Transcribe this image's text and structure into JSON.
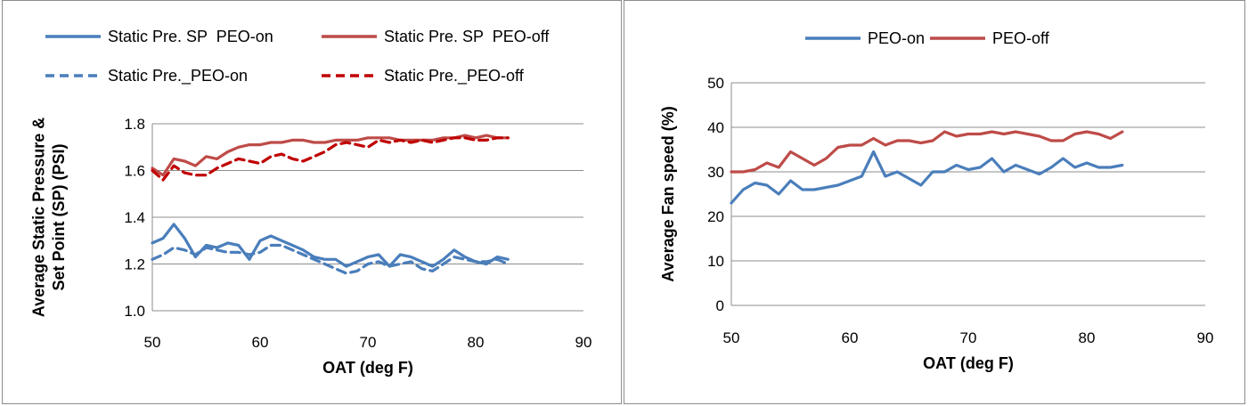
{
  "chart_data": [
    {
      "type": "line",
      "xlabel": "OAT (deg F)",
      "ylabel": "Average Static Pressure & Set Point (SP) (PSI)",
      "xlim": [
        50,
        90
      ],
      "ylim": [
        1.0,
        1.8
      ],
      "xticks": [
        "50",
        "60",
        "70",
        "80",
        "90"
      ],
      "yticks": [
        "1.0",
        "1.2",
        "1.4",
        "1.6",
        "1.8"
      ],
      "grid": "horizontal",
      "legend_position": "top",
      "series": [
        {
          "name": "Static Pre. SP  PEO-on",
          "color": "#4a7ebb",
          "style": "solid",
          "x": [
            50,
            51,
            52,
            53,
            54,
            55,
            56,
            57,
            58,
            59,
            60,
            61,
            62,
            63,
            64,
            65,
            66,
            67,
            68,
            69,
            70,
            71,
            72,
            73,
            74,
            75,
            76,
            77,
            78,
            79,
            80,
            81,
            82,
            83
          ],
          "y": [
            1.29,
            1.31,
            1.37,
            1.31,
            1.23,
            1.28,
            1.27,
            1.29,
            1.28,
            1.22,
            1.3,
            1.32,
            1.3,
            1.28,
            1.26,
            1.23,
            1.22,
            1.22,
            1.19,
            1.21,
            1.23,
            1.24,
            1.19,
            1.24,
            1.23,
            1.21,
            1.19,
            1.22,
            1.26,
            1.23,
            1.21,
            1.2,
            1.23,
            1.22
          ]
        },
        {
          "name": "Static Pre. SP  PEO-off",
          "color": "#be4b48",
          "style": "solid",
          "x": [
            50,
            51,
            52,
            53,
            54,
            55,
            56,
            57,
            58,
            59,
            60,
            61,
            62,
            63,
            64,
            65,
            66,
            67,
            68,
            69,
            70,
            71,
            72,
            73,
            74,
            75,
            76,
            77,
            78,
            79,
            80,
            81,
            82,
            83
          ],
          "y": [
            1.61,
            1.58,
            1.65,
            1.64,
            1.62,
            1.66,
            1.65,
            1.68,
            1.7,
            1.71,
            1.71,
            1.72,
            1.72,
            1.73,
            1.73,
            1.72,
            1.72,
            1.73,
            1.73,
            1.73,
            1.74,
            1.74,
            1.74,
            1.73,
            1.73,
            1.73,
            1.73,
            1.74,
            1.74,
            1.75,
            1.74,
            1.75,
            1.74,
            1.74
          ]
        },
        {
          "name": "Static Pre._PEO-on",
          "color": "#4a7ebb",
          "style": "dashed",
          "x": [
            50,
            51,
            52,
            53,
            54,
            55,
            56,
            57,
            58,
            59,
            60,
            61,
            62,
            63,
            64,
            65,
            66,
            67,
            68,
            69,
            70,
            71,
            72,
            73,
            74,
            75,
            76,
            77,
            78,
            79,
            80,
            81,
            82,
            83
          ],
          "y": [
            1.22,
            1.24,
            1.27,
            1.26,
            1.24,
            1.27,
            1.26,
            1.25,
            1.25,
            1.24,
            1.25,
            1.28,
            1.28,
            1.26,
            1.24,
            1.22,
            1.2,
            1.18,
            1.16,
            1.17,
            1.2,
            1.21,
            1.19,
            1.2,
            1.21,
            1.18,
            1.17,
            1.2,
            1.23,
            1.22,
            1.21,
            1.21,
            1.22,
            1.2
          ]
        },
        {
          "name": "Static Pre._PEO-off",
          "color": "#c00000",
          "style": "dashed",
          "x": [
            50,
            51,
            52,
            53,
            54,
            55,
            56,
            57,
            58,
            59,
            60,
            61,
            62,
            63,
            64,
            65,
            66,
            67,
            68,
            69,
            70,
            71,
            72,
            73,
            74,
            75,
            76,
            77,
            78,
            79,
            80,
            81,
            82,
            83
          ],
          "y": [
            1.6,
            1.56,
            1.62,
            1.59,
            1.58,
            1.58,
            1.61,
            1.63,
            1.65,
            1.64,
            1.63,
            1.66,
            1.67,
            1.65,
            1.64,
            1.66,
            1.68,
            1.71,
            1.72,
            1.71,
            1.7,
            1.73,
            1.72,
            1.73,
            1.72,
            1.73,
            1.72,
            1.73,
            1.74,
            1.74,
            1.73,
            1.73,
            1.74,
            1.74
          ]
        }
      ]
    },
    {
      "type": "line",
      "xlabel": "OAT (deg F)",
      "ylabel": "Average Fan speed (%)",
      "xlim": [
        50,
        90
      ],
      "ylim": [
        0,
        50
      ],
      "xticks": [
        "50",
        "60",
        "70",
        "80",
        "90"
      ],
      "yticks": [
        "0",
        "10",
        "20",
        "30",
        "40",
        "50"
      ],
      "grid": "horizontal",
      "legend_position": "top",
      "series": [
        {
          "name": "PEO-on",
          "color": "#4a7ebb",
          "style": "solid",
          "x": [
            50,
            51,
            52,
            53,
            54,
            55,
            56,
            57,
            58,
            59,
            60,
            61,
            62,
            63,
            64,
            65,
            66,
            67,
            68,
            69,
            70,
            71,
            72,
            73,
            74,
            75,
            76,
            77,
            78,
            79,
            80,
            81,
            82,
            83
          ],
          "y": [
            23,
            26,
            27.5,
            27,
            25,
            28,
            26,
            26,
            26.5,
            27,
            28,
            29,
            34.5,
            29,
            30,
            28.5,
            27,
            30,
            30,
            31.5,
            30.5,
            31,
            33,
            30,
            31.5,
            30.5,
            29.5,
            31,
            33,
            31,
            32,
            31,
            31,
            31.5
          ]
        },
        {
          "name": "PEO-off",
          "color": "#be4b48",
          "style": "solid",
          "x": [
            50,
            51,
            52,
            53,
            54,
            55,
            56,
            57,
            58,
            59,
            60,
            61,
            62,
            63,
            64,
            65,
            66,
            67,
            68,
            69,
            70,
            71,
            72,
            73,
            74,
            75,
            76,
            77,
            78,
            79,
            80,
            81,
            82,
            83
          ],
          "y": [
            30,
            30,
            30.5,
            32,
            31,
            34.5,
            33,
            31.5,
            33,
            35.5,
            36,
            36,
            37.5,
            36,
            37,
            37,
            36.5,
            37,
            39,
            38,
            38.5,
            38.5,
            39,
            38.5,
            39,
            38.5,
            38,
            37,
            37,
            38.5,
            39,
            38.5,
            37.5,
            39
          ]
        }
      ]
    }
  ]
}
